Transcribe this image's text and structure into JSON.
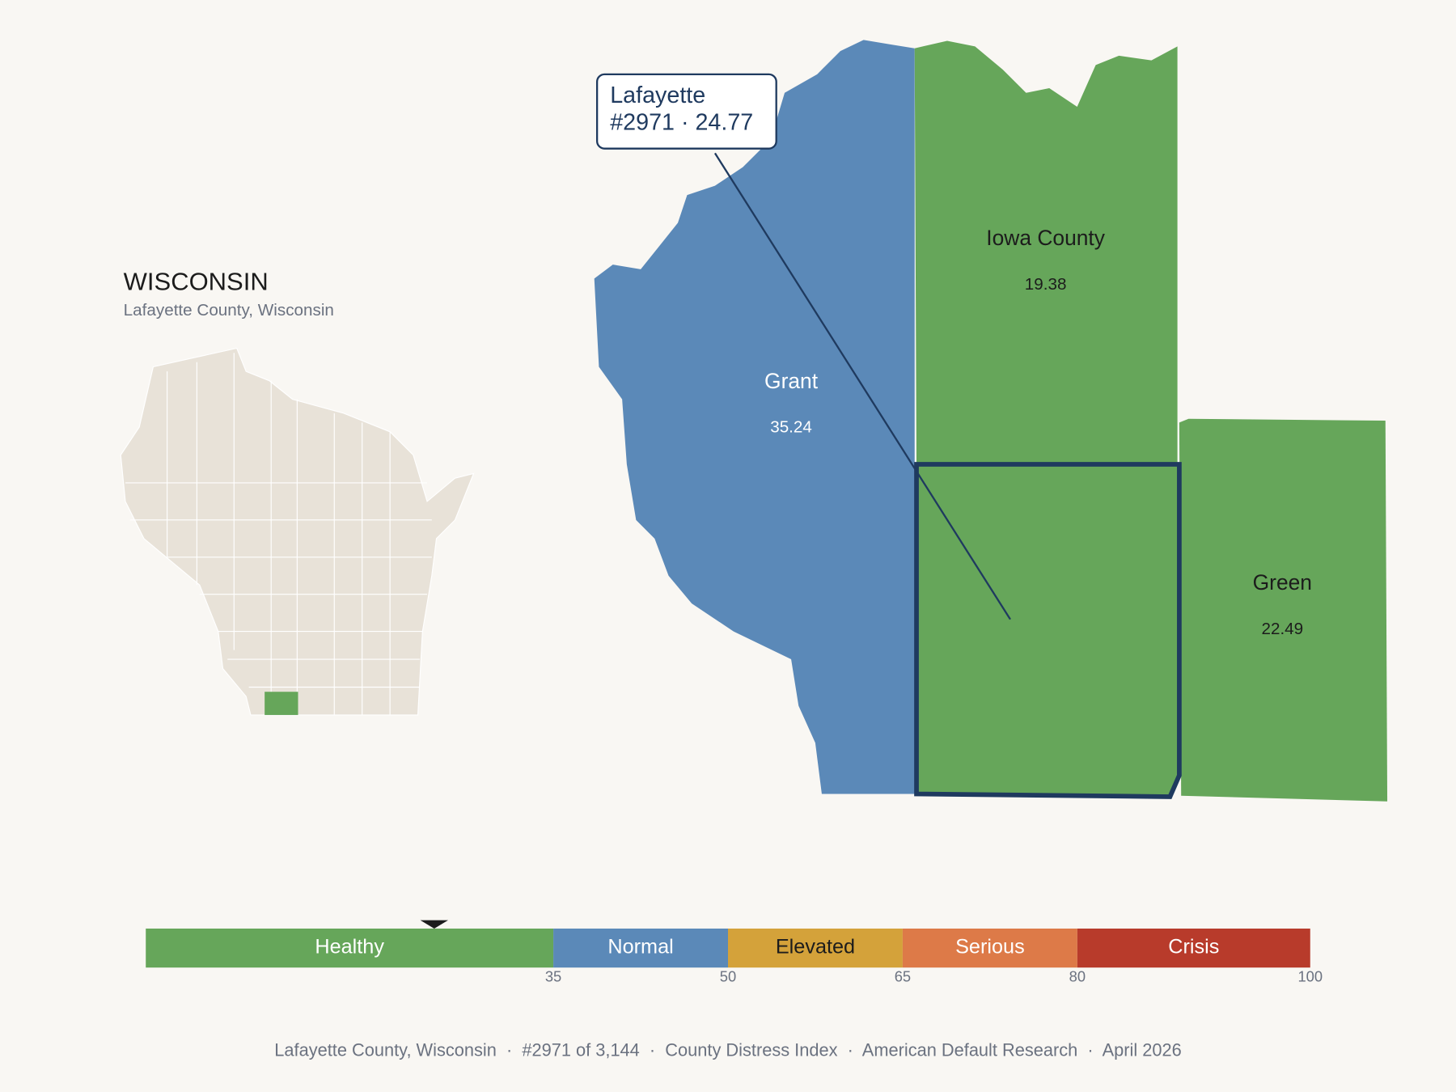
{
  "header": {
    "title": "WISCONSIN",
    "subtitle": "Lafayette County, Wisconsin"
  },
  "counties": [
    {
      "name": "Grant",
      "value": 35.24,
      "color": "#5b89b8",
      "text_color": "#ffffff"
    },
    {
      "name": "Iowa County",
      "value": 19.38,
      "color": "#66a65a",
      "text_color": "#1c1c1c"
    },
    {
      "name": "Green",
      "value": 22.49,
      "color": "#66a65a",
      "text_color": "#1c1c1c"
    },
    {
      "name": "Lafayette",
      "value": 24.77,
      "rank": 2971,
      "color": "#66a65a"
    }
  ],
  "tooltip": {
    "lines": [
      "Lafayette",
      "#2971 · 24.77"
    ]
  },
  "scale": {
    "range": [
      0,
      100
    ],
    "segments": [
      {
        "label": "Healthy",
        "max": 35,
        "color": "#66a65a",
        "text_color": "#ffffff"
      },
      {
        "label": "Normal",
        "max": 50,
        "color": "#5b89b8",
        "text_color": "#ffffff"
      },
      {
        "label": "Elevated",
        "max": 65,
        "color": "#d4a23a",
        "text_color": "#1c1c1c"
      },
      {
        "label": "Serious",
        "max": 80,
        "color": "#dd7a48",
        "text_color": "#ffffff"
      },
      {
        "label": "Crisis",
        "max": 100,
        "color": "#b83b2b",
        "text_color": "#ffffff"
      }
    ]
  },
  "footer": "Lafayette County, Wisconsin  ·  #2971 of 3,144  ·  County Distress Index  ·  American Default Research  ·  April 2026"
}
